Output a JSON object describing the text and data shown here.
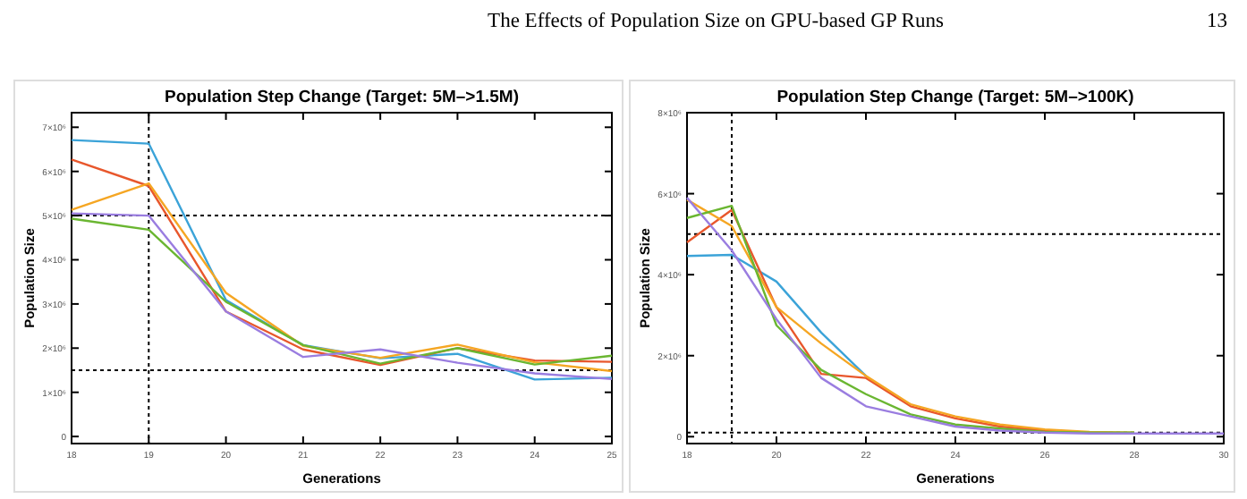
{
  "chart_data": [
    {
      "type": "line",
      "title": "Population Step Change (Target: 5M–>1.5M)",
      "xlabel": "Generations",
      "ylabel": "Population Size",
      "annotations": [
        "The Effects of Population Size on GPU-based GP Runs",
        "13"
      ],
      "grid": false,
      "xlim": [
        18,
        25
      ],
      "xticks": [
        18,
        19,
        20,
        21,
        22,
        23,
        24,
        25
      ],
      "ylim": [
        -160000,
        7330000
      ],
      "yticks": [
        0,
        {
          "value": 1000000,
          "label": "1×10⁶"
        },
        {
          "value": 2000000,
          "label": "2×10⁶"
        },
        {
          "value": 3000000,
          "label": "3×10⁶"
        },
        {
          "value": 4000000,
          "label": "4×10⁶"
        },
        {
          "value": 5000000,
          "label": "5×10⁶"
        },
        {
          "value": 6000000,
          "label": "6×10⁶"
        },
        {
          "value": 7000000,
          "label": "7×10⁶"
        }
      ],
      "ref_lines": [
        {
          "axis": "y",
          "value": 5000000,
          "line_style": "dotted"
        },
        {
          "axis": "y",
          "value": 1500000,
          "line_style": "dotted"
        },
        {
          "axis": "x",
          "value": 19,
          "line_style": "dotted"
        }
      ],
      "x": [
        18,
        19,
        20,
        21,
        22,
        23,
        24,
        25
      ],
      "series": [
        {
          "color": "#3ba3d8",
          "values": [
            6710000,
            6630000,
            3090000,
            2070000,
            1770000,
            1870000,
            1290000,
            1330000
          ]
        },
        {
          "color": "#e8572c",
          "values": [
            6270000,
            5670000,
            2830000,
            1970000,
            1620000,
            2000000,
            1720000,
            1690000
          ]
        },
        {
          "color": "#f5a623",
          "values": [
            5130000,
            5730000,
            3250000,
            2050000,
            1780000,
            2080000,
            1680000,
            1480000
          ]
        },
        {
          "color": "#6ab631",
          "values": [
            4930000,
            4680000,
            3050000,
            2070000,
            1650000,
            2000000,
            1630000,
            1830000
          ]
        },
        {
          "color": "#9a7de0",
          "values": [
            5050000,
            5000000,
            2830000,
            1800000,
            1970000,
            1670000,
            1430000,
            1300000
          ]
        }
      ]
    },
    {
      "type": "line",
      "title": "Population Step Change (Target: 5M–>100K)",
      "xlabel": "Generations",
      "ylabel": "Population Size",
      "grid": false,
      "xlim": [
        18,
        30
      ],
      "xticks": [
        18,
        20,
        22,
        24,
        26,
        28,
        30
      ],
      "ylim": [
        -170000,
        8000000
      ],
      "yticks": [
        0,
        {
          "value": 2000000,
          "label": "2×10⁶"
        },
        {
          "value": 4000000,
          "label": "4×10⁶"
        },
        {
          "value": 6000000,
          "label": "6×10⁶"
        },
        {
          "value": 8000000,
          "label": "8×10⁶"
        }
      ],
      "ref_lines": [
        {
          "axis": "y",
          "value": 5000000,
          "line_style": "dotted"
        },
        {
          "axis": "y",
          "value": 100000,
          "line_style": "dotted"
        },
        {
          "axis": "x",
          "value": 19,
          "line_style": "dotted"
        }
      ],
      "x": [
        18,
        19,
        20,
        21,
        22,
        23,
        24,
        25,
        26,
        27,
        28,
        29,
        30
      ],
      "series": [
        {
          "color": "#3ba3d8",
          "values": [
            4460000,
            4490000,
            3830000,
            2570000,
            1500000,
            null,
            null,
            null,
            null,
            null,
            null,
            null,
            null
          ]
        },
        {
          "color": "#e8572c",
          "values": [
            4800000,
            5600000,
            3200000,
            1550000,
            1450000,
            750000,
            450000,
            250000,
            150000,
            100000,
            null,
            null,
            null
          ]
        },
        {
          "color": "#f5a623",
          "values": [
            5850000,
            5200000,
            3200000,
            2300000,
            1500000,
            800000,
            500000,
            300000,
            180000,
            120000,
            100000,
            null,
            null
          ]
        },
        {
          "color": "#6ab631",
          "values": [
            5400000,
            5700000,
            2750000,
            1650000,
            1050000,
            550000,
            300000,
            200000,
            120000,
            100000,
            100000,
            null,
            null
          ]
        },
        {
          "color": "#9a7de0",
          "values": [
            5900000,
            4600000,
            2900000,
            1450000,
            750000,
            500000,
            250000,
            150000,
            100000,
            80000,
            80000,
            80000,
            80000
          ]
        }
      ]
    }
  ]
}
